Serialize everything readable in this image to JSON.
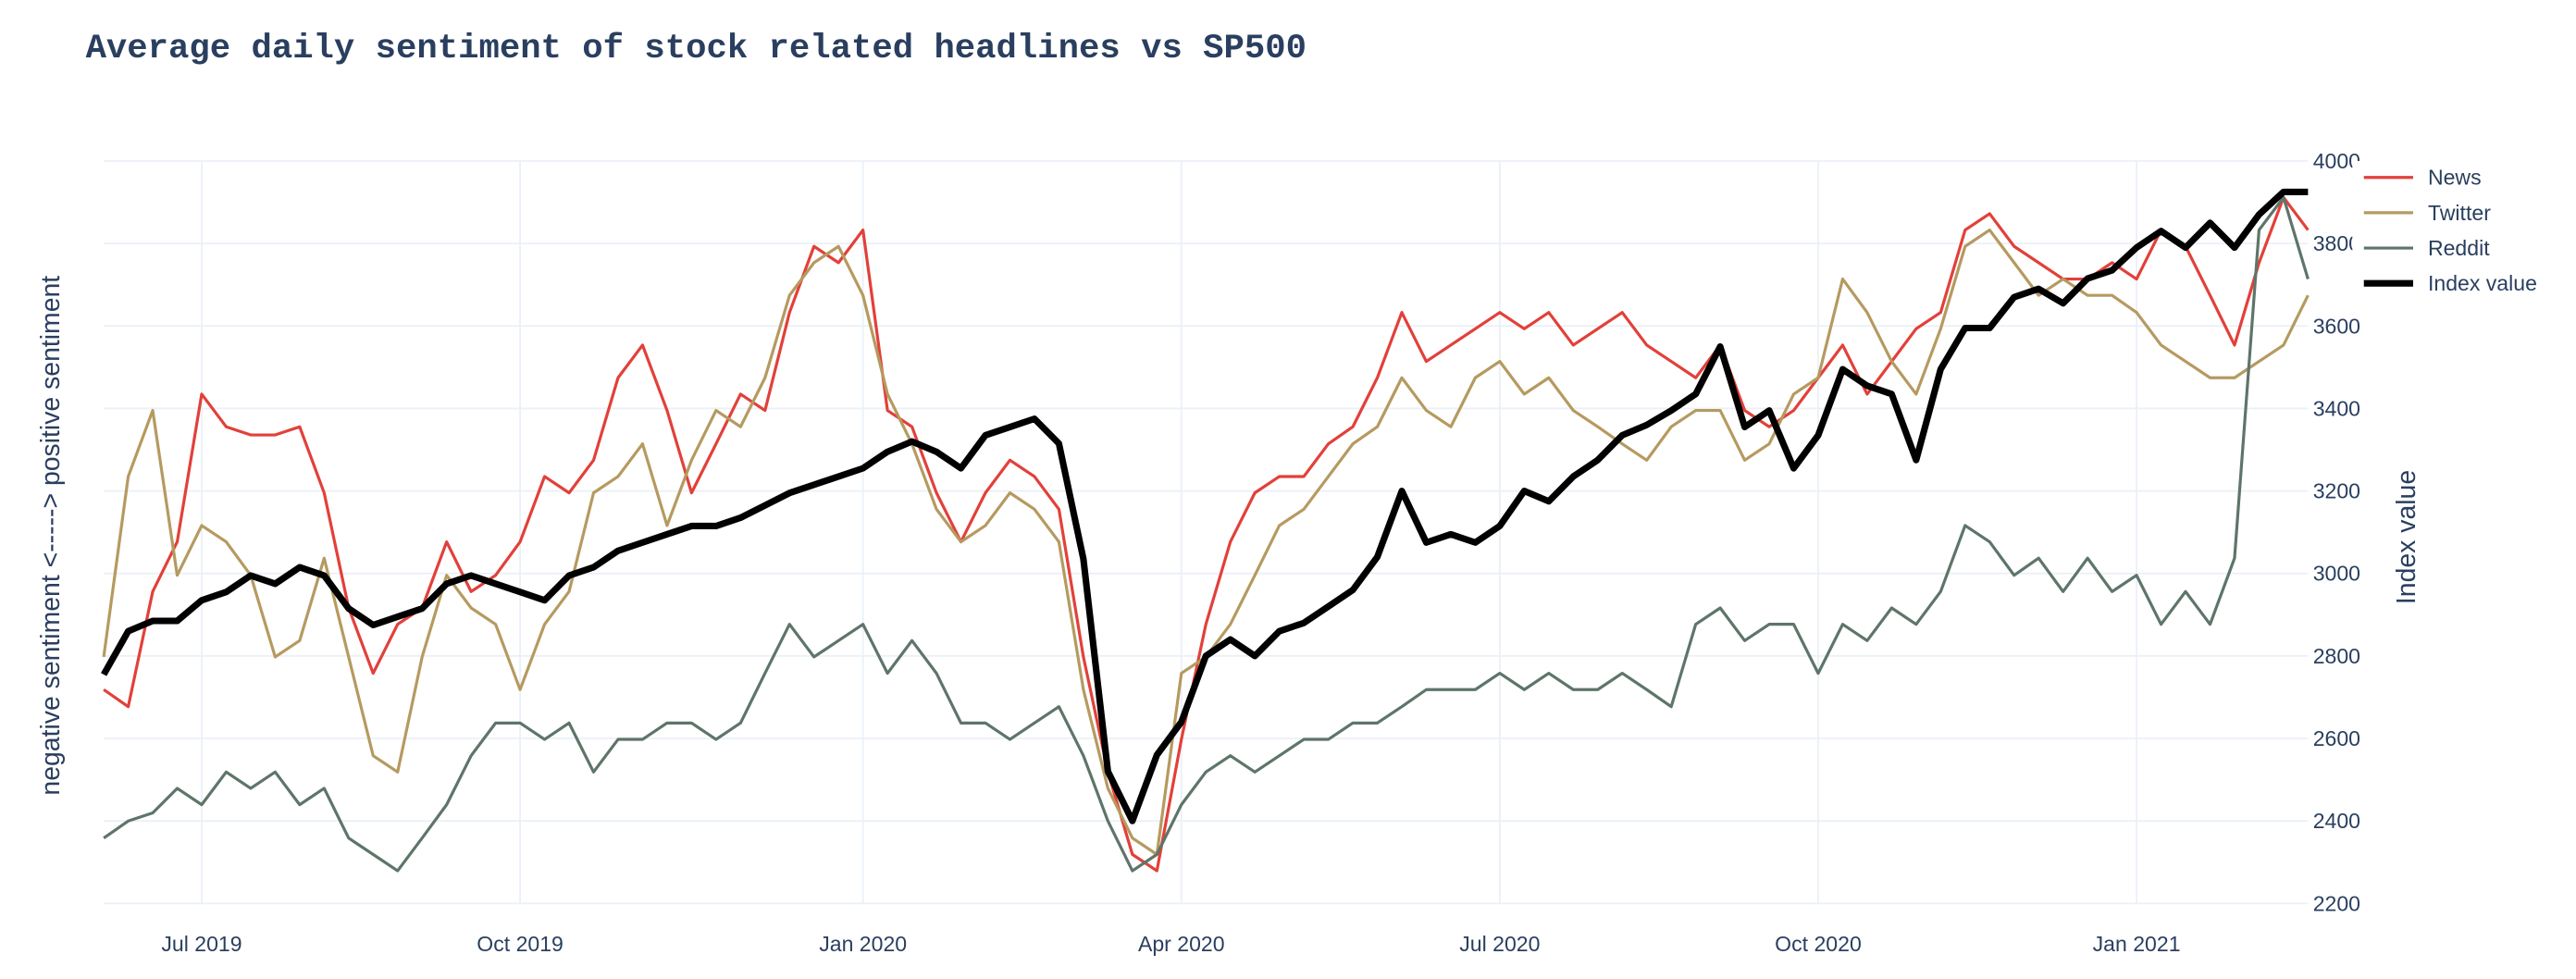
{
  "chart_data": {
    "type": "line",
    "title": "Average daily sentiment of stock related headlines vs SP500",
    "ylabel": "negative sentiment <-----> positive sentiment",
    "y2label": "Index value",
    "categories": [
      null,
      null,
      null,
      null,
      "Jul 2019",
      null,
      null,
      null,
      null,
      null,
      null,
      null,
      null,
      null,
      null,
      null,
      null,
      "Oct 2019",
      null,
      null,
      null,
      null,
      null,
      null,
      null,
      null,
      null,
      null,
      null,
      null,
      null,
      "Jan 2020",
      null,
      null,
      null,
      null,
      null,
      null,
      null,
      null,
      null,
      null,
      null,
      null,
      "Apr 2020",
      null,
      null,
      null,
      null,
      null,
      null,
      null,
      null,
      null,
      null,
      null,
      null,
      "Jul 2020",
      null,
      null,
      null,
      null,
      null,
      null,
      null,
      null,
      null,
      null,
      null,
      null,
      "Oct 2020",
      null,
      null,
      null,
      null,
      null,
      null,
      null,
      null,
      null,
      null,
      null,
      null,
      "Jan 2021",
      null,
      null,
      null,
      null,
      null,
      null,
      null
    ],
    "ylim": [
      0,
      100
    ],
    "y2lim": [
      2200,
      4000
    ],
    "y2ticks": [
      2200,
      2400,
      2600,
      2800,
      3000,
      3200,
      3400,
      3600,
      3800,
      4000
    ],
    "grid": true,
    "legend": "top-right",
    "series": [
      {
        "name": "News",
        "color": "#e2403a",
        "width": 1.8,
        "values": [
          28.8,
          26.5,
          42.0,
          48.7,
          68.6,
          64.2,
          63.1,
          63.1,
          64.2,
          55.3,
          39.8,
          31.0,
          37.6,
          39.8,
          48.7,
          42.0,
          44.2,
          48.7,
          57.5,
          55.3,
          59.7,
          70.8,
          75.2,
          66.4,
          55.3,
          61.9,
          68.6,
          66.4,
          79.6,
          88.5,
          86.3,
          90.7,
          66.4,
          64.2,
          55.3,
          48.7,
          55.3,
          59.7,
          57.5,
          53.1,
          33.2,
          17.7,
          6.6,
          4.4,
          22.1,
          37.6,
          48.7,
          55.3,
          57.5,
          57.5,
          61.9,
          64.2,
          70.8,
          79.6,
          73.0,
          75.2,
          77.4,
          79.6,
          77.4,
          79.6,
          75.2,
          77.4,
          79.6,
          75.2,
          73.0,
          70.8,
          75.2,
          66.4,
          64.2,
          66.4,
          70.8,
          75.2,
          68.6,
          73.0,
          77.4,
          79.6,
          90.7,
          92.9,
          88.5,
          86.3,
          84.1,
          84.1,
          86.3,
          84.1,
          90.7,
          88.5,
          81.9,
          75.2,
          86.3,
          95.1,
          90.7
        ]
      },
      {
        "name": "Twitter",
        "color": "#b59a60",
        "width": 1.8,
        "values": [
          33.2,
          57.5,
          66.4,
          44.2,
          50.9,
          48.7,
          44.2,
          33.2,
          35.4,
          46.5,
          33.2,
          19.9,
          17.7,
          33.2,
          44.2,
          39.8,
          37.6,
          28.8,
          37.6,
          42.0,
          55.3,
          57.5,
          61.9,
          50.9,
          59.7,
          66.4,
          64.2,
          70.8,
          81.9,
          86.3,
          88.5,
          81.9,
          68.6,
          61.9,
          53.1,
          48.7,
          50.9,
          55.3,
          53.1,
          48.7,
          28.8,
          15.5,
          8.8,
          6.6,
          31.0,
          33.2,
          37.6,
          44.2,
          50.9,
          53.1,
          57.5,
          61.9,
          64.2,
          70.8,
          66.4,
          64.2,
          70.8,
          73.0,
          68.6,
          70.8,
          66.4,
          64.2,
          61.9,
          59.7,
          64.2,
          66.4,
          66.4,
          59.7,
          61.9,
          68.6,
          70.8,
          84.1,
          79.6,
          73.0,
          68.6,
          77.4,
          88.5,
          90.7,
          86.3,
          81.9,
          84.1,
          81.9,
          81.9,
          79.6,
          75.2,
          73.0,
          70.8,
          70.8,
          73.0,
          75.2,
          81.9
        ]
      },
      {
        "name": "Reddit",
        "color": "#5e7569",
        "width": 1.8,
        "values": [
          8.8,
          11.1,
          12.2,
          15.5,
          13.3,
          17.7,
          15.5,
          17.7,
          13.3,
          15.5,
          8.8,
          6.6,
          4.4,
          8.8,
          13.3,
          19.9,
          24.3,
          24.3,
          22.1,
          24.3,
          17.7,
          22.1,
          22.1,
          24.3,
          24.3,
          22.1,
          24.3,
          31.0,
          37.6,
          33.2,
          35.4,
          37.6,
          31.0,
          35.4,
          31.0,
          24.3,
          24.3,
          22.1,
          24.3,
          26.5,
          19.9,
          11.1,
          4.4,
          6.6,
          13.3,
          17.7,
          19.9,
          17.7,
          19.9,
          22.1,
          22.1,
          24.3,
          24.3,
          26.5,
          28.8,
          28.8,
          28.8,
          31.0,
          28.8,
          31.0,
          28.8,
          28.8,
          31.0,
          28.8,
          26.5,
          37.6,
          39.8,
          35.4,
          37.6,
          37.6,
          31.0,
          37.6,
          35.4,
          39.8,
          37.6,
          42.0,
          50.9,
          48.7,
          44.2,
          46.5,
          42.0,
          46.5,
          42.0,
          44.2,
          37.6,
          42.0,
          37.6,
          46.5,
          90.7,
          95.1,
          84.1
        ]
      },
      {
        "name": "Index value",
        "color": "#000000",
        "width": 4,
        "axis": "y2",
        "values": [
          2755,
          2860,
          2885,
          2885,
          2935,
          2955,
          2995,
          2975,
          3015,
          2995,
          2915,
          2875,
          2895,
          2915,
          2975,
          2995,
          2975,
          2955,
          2935,
          2995,
          3015,
          3055,
          3075,
          3095,
          3115,
          3115,
          3135,
          3165,
          3195,
          3215,
          3235,
          3255,
          3295,
          3320,
          3295,
          3255,
          3335,
          3355,
          3375,
          3315,
          3035,
          2520,
          2400,
          2560,
          2640,
          2800,
          2840,
          2800,
          2860,
          2880,
          2920,
          2960,
          3040,
          3200,
          3075,
          3095,
          3075,
          3115,
          3200,
          3175,
          3235,
          3275,
          3335,
          3360,
          3395,
          3435,
          3550,
          3355,
          3395,
          3255,
          3335,
          3495,
          3455,
          3435,
          3275,
          3495,
          3595,
          3595,
          3670,
          3690,
          3655,
          3715,
          3735,
          3790,
          3830,
          3790,
          3850,
          3790,
          3870,
          3925,
          3925
        ]
      }
    ]
  }
}
